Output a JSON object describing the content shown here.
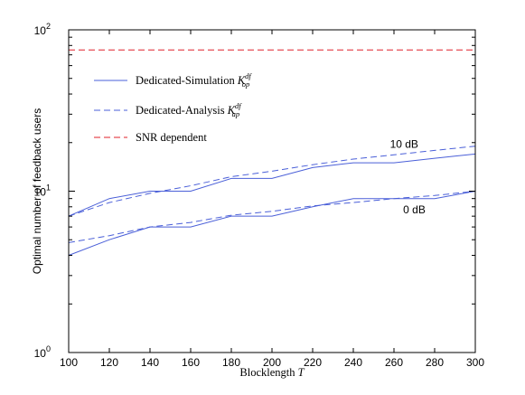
{
  "chart_data": {
    "type": "line",
    "xlabel": "Blocklength",
    "xlabel_symbol": "T",
    "ylabel": "Optimal number of feedback users",
    "x_ticks": [
      "100",
      "120",
      "140",
      "160",
      "180",
      "200",
      "220",
      "240",
      "260",
      "280",
      "300"
    ],
    "y_ticks": [
      {
        "value": 1,
        "base": "10",
        "exp": "0"
      },
      {
        "value": 10,
        "base": "10",
        "exp": "1"
      },
      {
        "value": 100,
        "base": "10",
        "exp": "2"
      }
    ],
    "xlim": [
      100,
      300
    ],
    "ylim": [
      1,
      100
    ],
    "yscale": "log",
    "grid": false,
    "legend_position": "upper-left",
    "legend": [
      {
        "text": "Dedicated-Simulation",
        "sym_base": "K",
        "sym_sup": "df",
        "sym_sub": "op",
        "style": "solid",
        "color": "#4a5fd8"
      },
      {
        "text": "Dedicated-Analysis",
        "sym_base": "K",
        "sym_sup": "df",
        "sym_sub": "ap",
        "style": "dashed",
        "color": "#4a5fd8"
      },
      {
        "text": "SNR dependent",
        "style": "dashed",
        "color": "#e0202a"
      }
    ],
    "annotations": [
      {
        "text": "10 dB",
        "x": 265,
        "y": 19.5
      },
      {
        "text": "0 dB",
        "x": 270,
        "y": 7.7
      }
    ],
    "x": [
      100,
      120,
      140,
      160,
      180,
      200,
      220,
      240,
      260,
      280,
      300
    ],
    "series": [
      {
        "label": "Dedicated-Simulation 10 dB",
        "style": "solid",
        "color": "#4a5fd8",
        "values": [
          7,
          9,
          10,
          10,
          12,
          12,
          14,
          15,
          15,
          16,
          17
        ]
      },
      {
        "label": "Dedicated-Analysis 10 dB",
        "style": "dashed",
        "color": "#4a5fd8",
        "values": [
          7,
          8.5,
          9.7,
          10.8,
          12.3,
          13.3,
          14.6,
          15.8,
          16.8,
          17.9,
          19
        ]
      },
      {
        "label": "Dedicated-Simulation 0 dB",
        "style": "solid",
        "color": "#4a5fd8",
        "values": [
          4,
          5,
          6,
          6,
          7,
          7,
          8,
          9,
          9,
          9,
          10
        ]
      },
      {
        "label": "Dedicated-Analysis 0 dB",
        "style": "dashed",
        "color": "#4a5fd8",
        "values": [
          4.8,
          5.3,
          6,
          6.4,
          7.1,
          7.5,
          8.1,
          8.5,
          9,
          9.4,
          10
        ]
      },
      {
        "label": "SNR dependent",
        "style": "dashed",
        "color": "#e0202a",
        "values": [
          75,
          75,
          75,
          75,
          75,
          75,
          75,
          75,
          75,
          75,
          75
        ]
      }
    ]
  }
}
